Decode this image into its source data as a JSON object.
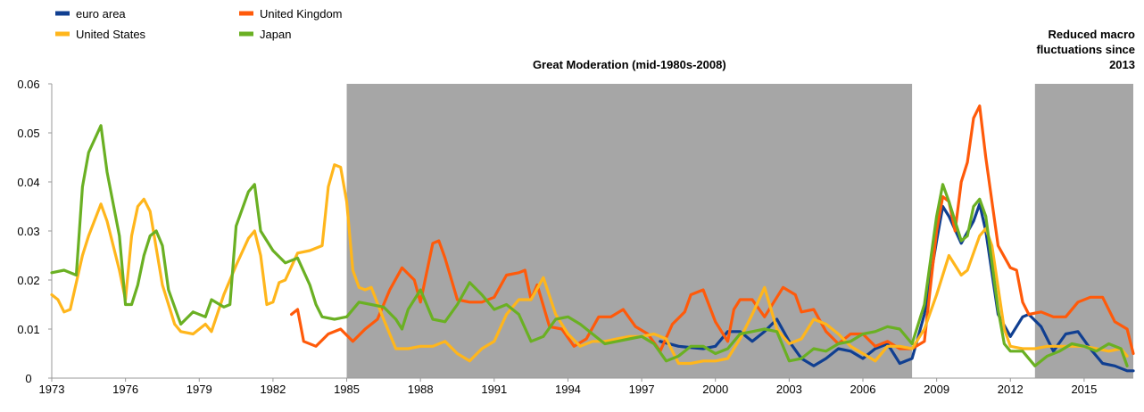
{
  "chart_data": {
    "type": "line",
    "xlim": [
      1973,
      2017
    ],
    "xticks": [
      1973,
      1976,
      1979,
      1982,
      1985,
      1988,
      1991,
      1994,
      1997,
      2000,
      2003,
      2006,
      2009,
      2012,
      2015
    ],
    "ylim": [
      0,
      0.06
    ],
    "yticks": [
      0,
      0.01,
      0.02,
      0.03,
      0.04,
      0.05,
      0.06
    ],
    "grid": false,
    "legend": "top-left",
    "shaded_regions": [
      {
        "label": "Great Moderation (mid-1980s-2008)",
        "x": [
          1985,
          2008
        ],
        "color": "#a6a6a6"
      },
      {
        "label": "Reduced macro fluctuations since 2013",
        "x": [
          2013,
          2017
        ],
        "color": "#a6a6a6"
      }
    ],
    "series": [
      {
        "name": "euro area",
        "color": "#103f91",
        "x": [
          1997.75,
          1998.5,
          1999.5,
          2000,
          2000.5,
          2001,
          2001.5,
          2002,
          2002.5,
          2003,
          2003.5,
          2004,
          2004.5,
          2005,
          2005.5,
          2006,
          2006.5,
          2007,
          2007.5,
          2008,
          2008.5,
          2009,
          2009.25,
          2009.5,
          2010,
          2010.5,
          2010.75,
          2011,
          2011.5,
          2012,
          2012.5,
          2012.75,
          2013.25,
          2013.75,
          2014.25,
          2014.75,
          2015.25,
          2015.75,
          2016.25,
          2016.75,
          2017
        ],
        "values": [
          0.0075,
          0.0065,
          0.006,
          0.0065,
          0.0095,
          0.0095,
          0.0075,
          0.0095,
          0.012,
          0.0075,
          0.004,
          0.0025,
          0.004,
          0.006,
          0.0055,
          0.004,
          0.006,
          0.007,
          0.003,
          0.004,
          0.013,
          0.028,
          0.035,
          0.033,
          0.0275,
          0.032,
          0.0355,
          0.03,
          0.013,
          0.0085,
          0.0125,
          0.013,
          0.0105,
          0.0055,
          0.009,
          0.0095,
          0.006,
          0.003,
          0.0025,
          0.0015,
          0.0015
        ]
      },
      {
        "name": "United Kingdom",
        "color": "#ff5a0a",
        "x": [
          1982.75,
          1983,
          1983.25,
          1983.75,
          1984.25,
          1984.75,
          1985.25,
          1985.75,
          1986.25,
          1986.75,
          1987.25,
          1987.75,
          1988,
          1988.5,
          1988.75,
          1989,
          1989.5,
          1990,
          1990.5,
          1991,
          1991.5,
          1992,
          1992.25,
          1992.5,
          1992.75,
          1993.25,
          1993.75,
          1994.25,
          1994.75,
          1995.25,
          1995.75,
          1996.25,
          1996.75,
          1997.25,
          1997.75,
          1998.25,
          1998.75,
          1999,
          1999.5,
          2000,
          2000.5,
          2000.75,
          2001,
          2001.5,
          2002,
          2002.5,
          2002.75,
          2003.25,
          2003.5,
          2004,
          2004.5,
          2005,
          2005.5,
          2006,
          2006.5,
          2007,
          2007.5,
          2008,
          2008.5,
          2009,
          2009.25,
          2009.5,
          2009.75,
          2010,
          2010.25,
          2010.5,
          2010.75,
          2011,
          2011.5,
          2012,
          2012.25,
          2012.5,
          2012.75,
          2013.25,
          2013.75,
          2014.25,
          2014.75,
          2015.25,
          2015.75,
          2016.25,
          2016.75,
          2017
        ],
        "values": [
          0.013,
          0.014,
          0.0075,
          0.0065,
          0.009,
          0.01,
          0.0075,
          0.01,
          0.012,
          0.018,
          0.0225,
          0.02,
          0.0155,
          0.0275,
          0.028,
          0.0245,
          0.016,
          0.0155,
          0.0155,
          0.0165,
          0.021,
          0.0215,
          0.022,
          0.016,
          0.019,
          0.0105,
          0.01,
          0.0065,
          0.008,
          0.0125,
          0.0125,
          0.014,
          0.0105,
          0.009,
          0.0055,
          0.011,
          0.0135,
          0.017,
          0.018,
          0.0115,
          0.0075,
          0.014,
          0.016,
          0.016,
          0.0125,
          0.0165,
          0.0185,
          0.017,
          0.0135,
          0.014,
          0.0095,
          0.007,
          0.009,
          0.009,
          0.0065,
          0.0075,
          0.006,
          0.006,
          0.0075,
          0.03,
          0.037,
          0.036,
          0.03,
          0.04,
          0.044,
          0.053,
          0.0555,
          0.045,
          0.027,
          0.0225,
          0.022,
          0.0155,
          0.013,
          0.0135,
          0.0125,
          0.0125,
          0.0155,
          0.0165,
          0.0165,
          0.0115,
          0.01,
          0.005
        ]
      },
      {
        "name": "United States",
        "color": "#ffb61c",
        "x": [
          1973,
          1973.25,
          1973.5,
          1973.75,
          1974.25,
          1974.5,
          1975,
          1975.25,
          1975.75,
          1976,
          1976.25,
          1976.5,
          1976.75,
          1977,
          1977.5,
          1978,
          1978.25,
          1978.75,
          1979.25,
          1979.5,
          1980,
          1980.5,
          1981,
          1981.25,
          1981.5,
          1981.75,
          1982,
          1982.25,
          1982.5,
          1983,
          1983.5,
          1984,
          1984.25,
          1984.5,
          1984.75,
          1985,
          1985.25,
          1985.5,
          1985.75,
          1986,
          1986.5,
          1987,
          1987.5,
          1988,
          1988.5,
          1989,
          1989.5,
          1990,
          1990.5,
          1991,
          1991.5,
          1992,
          1992.5,
          1993,
          1993.5,
          1994,
          1994.5,
          1995,
          1995.5,
          1996,
          1996.5,
          1997,
          1997.5,
          1998,
          1998.5,
          1999,
          1999.5,
          2000,
          2000.5,
          2001,
          2001.5,
          2002,
          2002.5,
          2003,
          2003.5,
          2004,
          2004.5,
          2005,
          2005.5,
          2006,
          2006.5,
          2007,
          2007.5,
          2008,
          2008.5,
          2009,
          2009.5,
          2010,
          2010.25,
          2010.75,
          2011,
          2011.25,
          2011.75,
          2012,
          2012.5,
          2013,
          2013.5,
          2014,
          2014.5,
          2015,
          2015.5,
          2016,
          2016.5,
          2016.75
        ],
        "values": [
          0.017,
          0.016,
          0.0135,
          0.014,
          0.025,
          0.029,
          0.0355,
          0.032,
          0.022,
          0.016,
          0.029,
          0.035,
          0.0365,
          0.034,
          0.019,
          0.011,
          0.0095,
          0.009,
          0.011,
          0.0095,
          0.017,
          0.023,
          0.0285,
          0.03,
          0.025,
          0.015,
          0.0155,
          0.0195,
          0.02,
          0.0255,
          0.026,
          0.027,
          0.039,
          0.0435,
          0.043,
          0.036,
          0.022,
          0.0185,
          0.018,
          0.0185,
          0.012,
          0.006,
          0.006,
          0.0065,
          0.0065,
          0.0075,
          0.005,
          0.0035,
          0.006,
          0.0075,
          0.013,
          0.016,
          0.016,
          0.0205,
          0.013,
          0.009,
          0.0065,
          0.0075,
          0.0075,
          0.008,
          0.0085,
          0.0085,
          0.009,
          0.008,
          0.003,
          0.003,
          0.0035,
          0.0035,
          0.004,
          0.008,
          0.013,
          0.0185,
          0.01,
          0.007,
          0.008,
          0.012,
          0.011,
          0.009,
          0.0065,
          0.005,
          0.0035,
          0.0065,
          0.0065,
          0.006,
          0.01,
          0.017,
          0.025,
          0.021,
          0.022,
          0.029,
          0.0305,
          0.027,
          0.01,
          0.0065,
          0.006,
          0.006,
          0.0065,
          0.0065,
          0.0065,
          0.0065,
          0.006,
          0.0055,
          0.006,
          0.0045
        ]
      },
      {
        "name": "Japan",
        "color": "#6ab023",
        "x": [
          1973,
          1973.5,
          1974,
          1974.25,
          1974.5,
          1975,
          1975.25,
          1975.75,
          1976,
          1976.25,
          1976.5,
          1976.75,
          1977,
          1977.25,
          1977.5,
          1977.75,
          1978.25,
          1978.75,
          1979.25,
          1979.5,
          1980,
          1980.25,
          1980.5,
          1981,
          1981.25,
          1981.5,
          1982,
          1982.5,
          1983,
          1983.5,
          1983.75,
          1984,
          1984.5,
          1985,
          1985.5,
          1986,
          1986.5,
          1987,
          1987.25,
          1987.5,
          1988,
          1988.5,
          1989,
          1989.5,
          1990,
          1990.5,
          1991,
          1991.5,
          1992,
          1992.5,
          1993,
          1993.5,
          1994,
          1994.5,
          1995,
          1995.5,
          1996,
          1996.5,
          1997,
          1997.5,
          1998,
          1998.5,
          1999,
          1999.5,
          2000,
          2000.5,
          2001,
          2001.5,
          2002,
          2002.5,
          2003,
          2003.5,
          2004,
          2004.5,
          2005,
          2005.5,
          2006,
          2006.5,
          2007,
          2007.5,
          2008,
          2008.5,
          2009,
          2009.25,
          2009.5,
          2010,
          2010.25,
          2010.5,
          2010.75,
          2011,
          2011.5,
          2011.75,
          2012,
          2012.5,
          2013,
          2013.5,
          2014,
          2014.5,
          2015,
          2015.5,
          2016,
          2016.5,
          2016.75
        ],
        "values": [
          0.0215,
          0.022,
          0.021,
          0.039,
          0.046,
          0.0515,
          0.042,
          0.029,
          0.015,
          0.015,
          0.019,
          0.025,
          0.029,
          0.03,
          0.027,
          0.018,
          0.011,
          0.0135,
          0.0125,
          0.016,
          0.0145,
          0.015,
          0.031,
          0.038,
          0.0395,
          0.03,
          0.026,
          0.0235,
          0.0245,
          0.019,
          0.015,
          0.0125,
          0.012,
          0.0125,
          0.0155,
          0.015,
          0.0145,
          0.012,
          0.01,
          0.014,
          0.018,
          0.012,
          0.0115,
          0.015,
          0.0195,
          0.017,
          0.014,
          0.015,
          0.013,
          0.0075,
          0.0085,
          0.012,
          0.0125,
          0.011,
          0.009,
          0.007,
          0.0075,
          0.008,
          0.0085,
          0.007,
          0.0035,
          0.0045,
          0.0065,
          0.0065,
          0.005,
          0.006,
          0.009,
          0.0095,
          0.01,
          0.0095,
          0.0035,
          0.004,
          0.006,
          0.0055,
          0.007,
          0.0075,
          0.009,
          0.0095,
          0.0105,
          0.01,
          0.007,
          0.015,
          0.033,
          0.0395,
          0.036,
          0.028,
          0.029,
          0.035,
          0.0365,
          0.033,
          0.014,
          0.007,
          0.0055,
          0.0055,
          0.0025,
          0.0045,
          0.0055,
          0.007,
          0.0065,
          0.0055,
          0.007,
          0.006,
          0.0025
        ]
      }
    ]
  }
}
